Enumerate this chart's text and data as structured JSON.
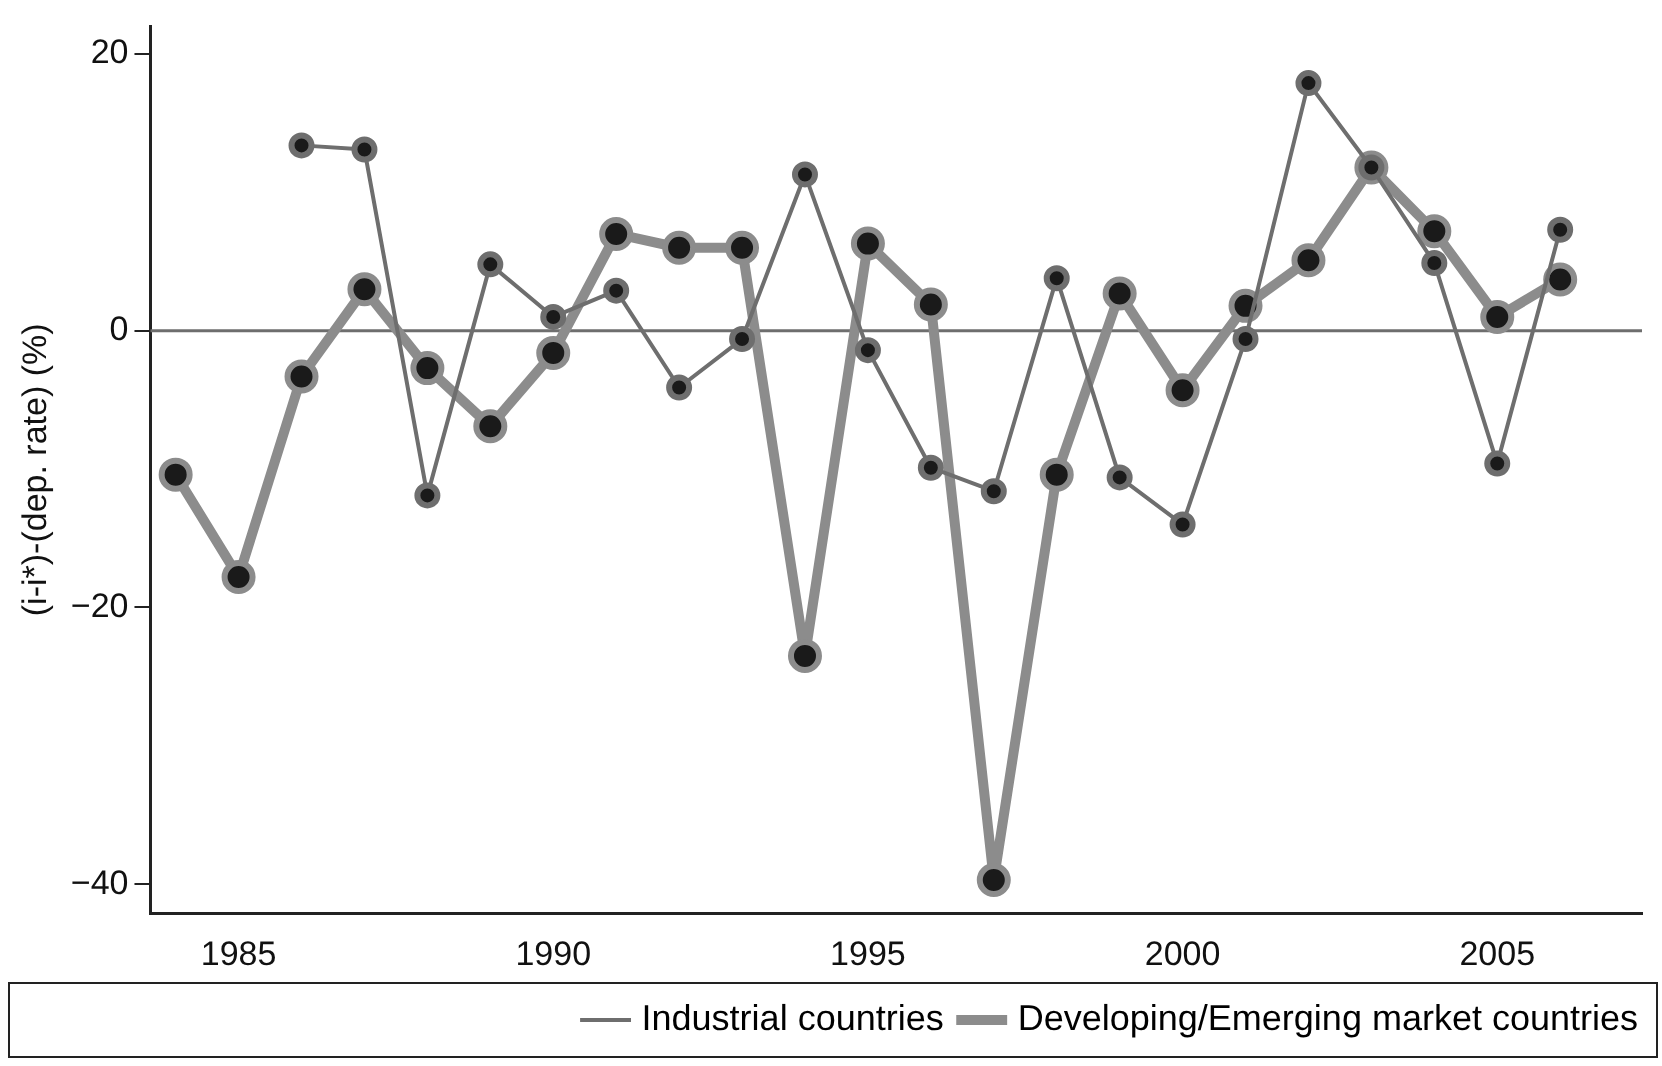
{
  "chart_data": {
    "type": "line",
    "ylabel": "(i-i*)-(dep. rate) (%)",
    "x": [
      1984,
      1985,
      1986,
      1987,
      1988,
      1989,
      1990,
      1991,
      1992,
      1993,
      1994,
      1995,
      1996,
      1997,
      1998,
      1999,
      2000,
      2001,
      2002,
      2003,
      2004,
      2005,
      2006
    ],
    "series": [
      {
        "name": "Industrial countries",
        "color": "#6e6e6e",
        "values": [
          null,
          null,
          13.4,
          13.1,
          -11.9,
          4.8,
          1.0,
          2.9,
          -4.1,
          -0.6,
          11.3,
          -1.4,
          -9.9,
          -11.6,
          3.8,
          -10.6,
          -14.0,
          -0.6,
          17.9,
          11.8,
          4.9,
          -9.6,
          7.3
        ]
      },
      {
        "name": "Developing/Emerging market countries",
        "color": "#8c8c8c",
        "values": [
          -10.4,
          -17.8,
          -3.3,
          3.0,
          -2.7,
          -6.9,
          -1.6,
          7.0,
          6.0,
          6.0,
          -23.5,
          6.3,
          1.9,
          -39.7,
          -10.4,
          2.7,
          -4.3,
          1.8,
          5.1,
          11.8,
          7.2,
          1.0,
          3.7
        ]
      }
    ],
    "xlim": [
      1983.6,
      2007.3
    ],
    "xticks": [
      1985,
      1990,
      1995,
      2000,
      2005
    ],
    "ylim": [
      -42.1,
      22
    ],
    "yticks": [
      -40,
      -20,
      0,
      20
    ],
    "ref_lines": [
      {
        "axis": "y",
        "value": 0,
        "color": "#6e6e6e"
      }
    ],
    "grid": false,
    "legend": "bottom",
    "marker": "circle",
    "line_style": "solid"
  }
}
